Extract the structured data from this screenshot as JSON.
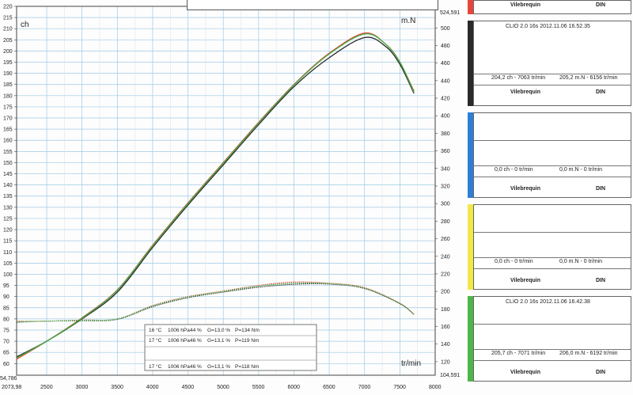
{
  "chart_data": {
    "type": "line",
    "x_unit": "tr/min",
    "y_left_unit": "ch",
    "y_right_unit": "m.N",
    "x_ticks": [
      2073.98,
      2500,
      3000,
      3500,
      4000,
      4500,
      5000,
      5500,
      6000,
      6500,
      7000,
      7500,
      8000
    ],
    "xlim": [
      2073.98,
      8000
    ],
    "y_left_ticks": [
      60,
      65,
      70,
      75,
      80,
      85,
      90,
      95,
      100,
      105,
      110,
      115,
      120,
      125,
      130,
      135,
      140,
      145,
      150,
      155,
      160,
      165,
      170,
      175,
      180,
      185,
      190,
      195,
      200,
      205,
      210,
      215,
      220
    ],
    "y_left_extra": "54,786",
    "y_left_lim": [
      54.786,
      220
    ],
    "y_right_ticks": [
      120,
      140,
      160,
      180,
      200,
      220,
      240,
      260,
      280,
      300,
      320,
      340,
      360,
      380,
      400,
      420,
      440,
      460,
      480,
      500
    ],
    "y_right_top_label": "524,591",
    "y_right_bottom_label": "104,591",
    "y_right_lim": [
      104.591,
      524.591
    ],
    "series": [
      {
        "axis": "left",
        "color": "#e8463c",
        "x": [
          2074,
          2500,
          3000,
          3500,
          4000,
          4500,
          5000,
          5500,
          6000,
          6500,
          7000,
          7300,
          7500,
          7700
        ],
        "y": [
          62,
          70,
          80.5,
          93,
          113,
          132,
          150,
          168,
          185,
          199,
          208,
          203,
          195,
          182
        ]
      },
      {
        "axis": "left",
        "color": "#2a2a2a",
        "x": [
          2074,
          2500,
          3000,
          3500,
          4000,
          4500,
          5000,
          5500,
          6000,
          6500,
          7000,
          7300,
          7500,
          7700
        ],
        "y": [
          63,
          70,
          80,
          92,
          112,
          131,
          149,
          167,
          184,
          197,
          206,
          202,
          194,
          181
        ]
      },
      {
        "axis": "left",
        "color": "#3fae3f",
        "x": [
          2074,
          2500,
          3000,
          3500,
          4000,
          4500,
          5000,
          5500,
          6000,
          6500,
          7000,
          7300,
          7500,
          7700
        ],
        "y": [
          62.5,
          70,
          80.3,
          92.8,
          112.7,
          131.7,
          149.7,
          167.7,
          184.8,
          198.7,
          207.6,
          203,
          195,
          181.5
        ]
      },
      {
        "axis": "left",
        "color": "#e8463c",
        "x": [
          2074,
          2500,
          3000,
          3500,
          4000,
          4500,
          5000,
          5500,
          6000,
          6500,
          7000,
          7500,
          7700
        ],
        "y": [
          79,
          79,
          79.5,
          80,
          86,
          90,
          92.5,
          95,
          96.5,
          96,
          94,
          87,
          82
        ]
      },
      {
        "axis": "left",
        "color": "#2a2a2a",
        "x": [
          2074,
          2500,
          3000,
          3500,
          4000,
          4500,
          5000,
          5500,
          6000,
          6500,
          7000,
          7500,
          7700
        ],
        "y": [
          78.5,
          79,
          79.2,
          79.8,
          85.5,
          89.5,
          92,
          94.2,
          95.5,
          95.6,
          93.6,
          86.8,
          82
        ]
      },
      {
        "axis": "left",
        "color": "#3fae3f",
        "x": [
          2074,
          2500,
          3000,
          3500,
          4000,
          4500,
          5000,
          5500,
          6000,
          6500,
          7000,
          7500,
          7700
        ],
        "y": [
          78.8,
          79,
          79.4,
          80,
          85.8,
          89.8,
          92.3,
          94.7,
          96,
          95.8,
          93.8,
          86.9,
          82
        ]
      }
    ]
  },
  "info_box": {
    "rows": [
      {
        "temp": "16 °C",
        "pressure": "1006 hPa",
        "humidity": "44 %",
        "g": "G=13,0 %",
        "p": "P=134 Nm"
      },
      {
        "temp": "17 °C",
        "pressure": "1006 hPa",
        "humidity": "46 %",
        "g": "G=13,1 %",
        "p": "P=119 Nm"
      },
      {
        "temp": "17 °C",
        "pressure": "1006 hPa",
        "humidity": "46 %",
        "g": "G=13,1 %",
        "p": "P=118 Nm"
      }
    ]
  },
  "panels": [
    {
      "color": "#e8463c",
      "label": "",
      "result_power": "",
      "result_torque": "",
      "crank": "Vilebrequin",
      "norm": "DIN"
    },
    {
      "color": "#2a2a2a",
      "label": "CLIO 2.0 16s  2012.11.06 16.52.35",
      "result_power": "204,2 ch - 7063 tr/min",
      "result_torque": "205,2 m.N - 6156 tr/min",
      "crank": "Vilebrequin",
      "norm": "DIN"
    },
    {
      "color": "#2c7fd6",
      "label": "",
      "result_power": "0,0 ch - 0 tr/min",
      "result_torque": "0,0 m.N - 0 tr/min",
      "crank": "Vilebrequin",
      "norm": "DIN"
    },
    {
      "color": "#f2e84a",
      "label": "",
      "result_power": "0,0 ch - 0 tr/min",
      "result_torque": "0,0 m.N - 0 tr/min",
      "crank": "Vilebrequin",
      "norm": "DIN"
    },
    {
      "color": "#4cb648",
      "label": "CLIO 2.0 16s  2012.11.06 16.42.38",
      "result_power": "205,7 ch - 7071 tr/min",
      "result_torque": "206,0 m.N - 6192 tr/min",
      "crank": "Vilebrequin",
      "norm": "DIN"
    }
  ]
}
